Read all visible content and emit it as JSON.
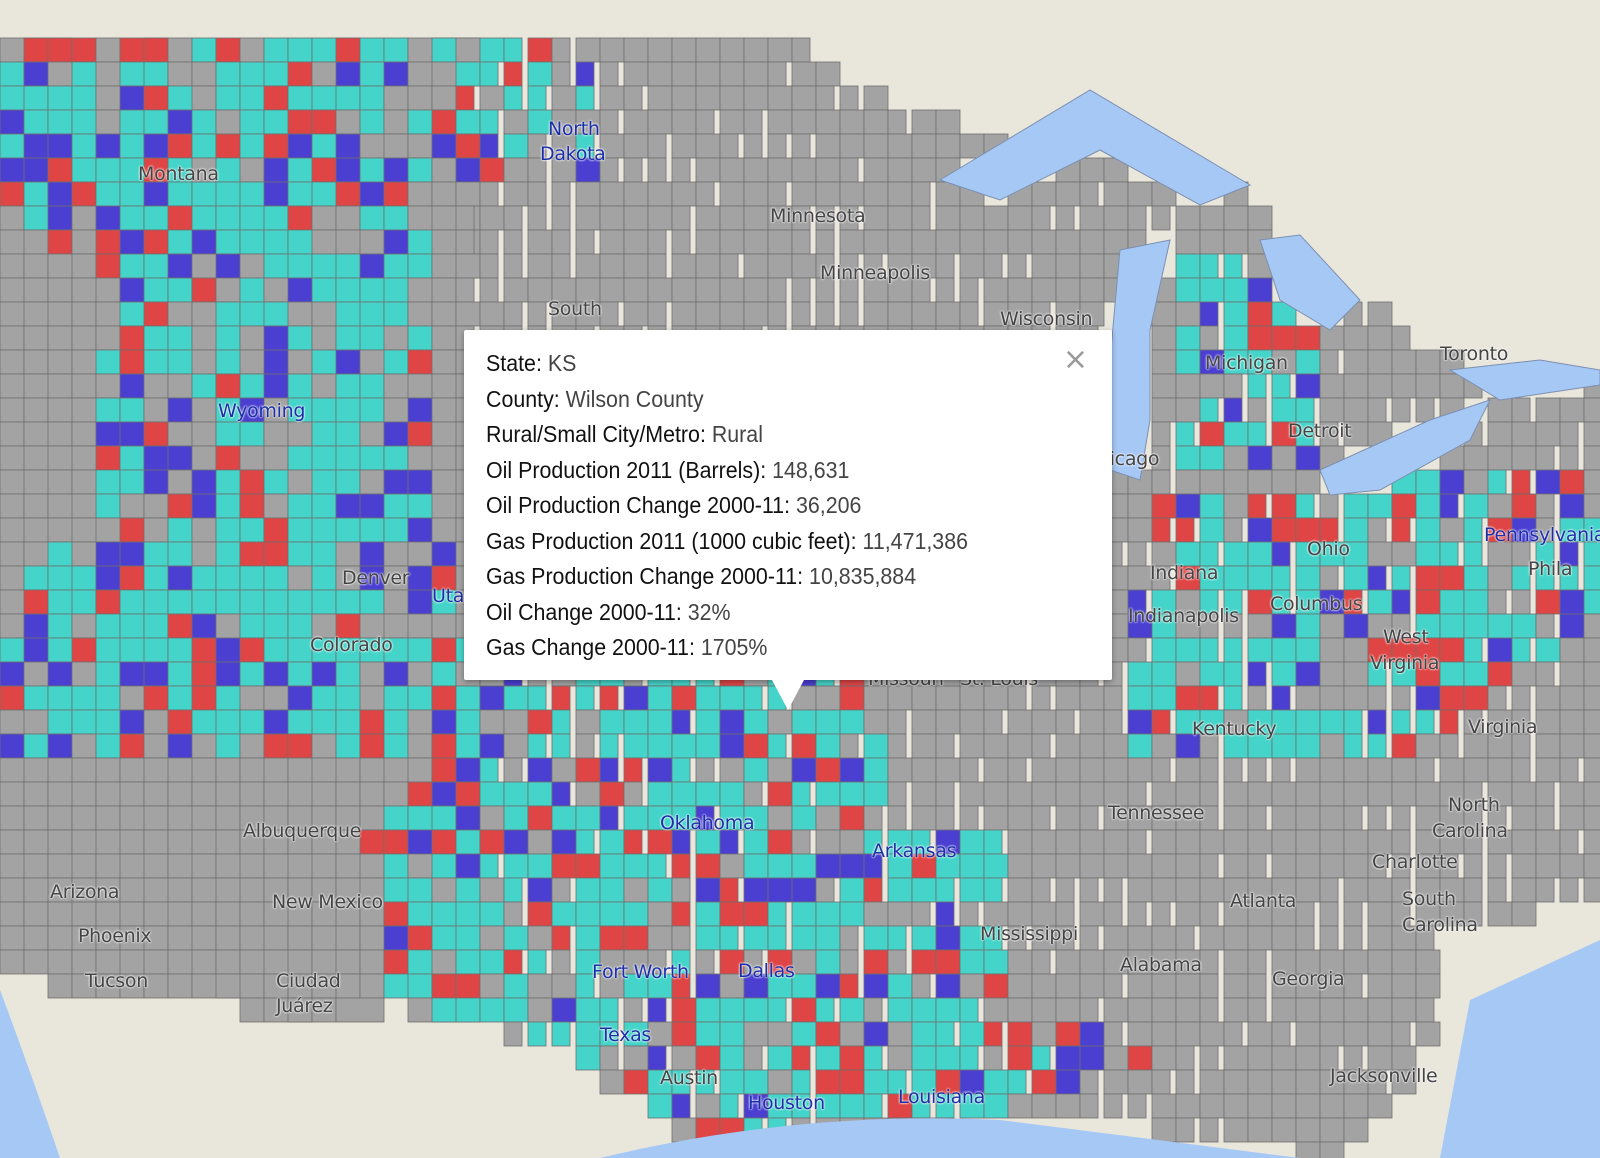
{
  "map": {
    "colors": {
      "oil_gas_increase": "#45d4c9",
      "oil_increase": "#e04545",
      "gas_increase": "#4a3fd1",
      "no_change": "#a3a3a3",
      "county_border": "#6e6e6e",
      "water": "#a6c8f5",
      "land": "#e9e6dc"
    },
    "labels": [
      {
        "text": "North",
        "cls": "blue"
      },
      {
        "text": "Dakota",
        "cls": "blue"
      },
      {
        "text": "Montana",
        "cls": "state"
      },
      {
        "text": "Minnesota",
        "cls": "state"
      },
      {
        "text": "Minneapolis",
        "cls": "state"
      },
      {
        "text": "South",
        "cls": "state"
      },
      {
        "text": "Wisconsin",
        "cls": "state"
      },
      {
        "text": "Wyoming",
        "cls": "blue"
      },
      {
        "text": "Michigan",
        "cls": "state"
      },
      {
        "text": "Toronto",
        "cls": "state"
      },
      {
        "text": "Detroit",
        "cls": "state"
      },
      {
        "text": "Chicago",
        "cls": "state"
      },
      {
        "text": "Denver",
        "cls": "state"
      },
      {
        "text": "Utah",
        "cls": "blue"
      },
      {
        "text": "Colorado",
        "cls": "state"
      },
      {
        "text": "Indiana",
        "cls": "state"
      },
      {
        "text": "Indianapolis",
        "cls": "state"
      },
      {
        "text": "Ohio",
        "cls": "state"
      },
      {
        "text": "Columbus",
        "cls": "state"
      },
      {
        "text": "West",
        "cls": "state"
      },
      {
        "text": "Virginia",
        "cls": "state"
      },
      {
        "text": "Missouri",
        "cls": "state"
      },
      {
        "text": "St. Louis",
        "cls": "state"
      },
      {
        "text": "Kentucky",
        "cls": "state"
      },
      {
        "text": "Virginia",
        "cls": "state"
      },
      {
        "text": "Albuquerque",
        "cls": "state"
      },
      {
        "text": "Oklahoma",
        "cls": "blue"
      },
      {
        "text": "Arkansas",
        "cls": "blue"
      },
      {
        "text": "Tennessee",
        "cls": "state"
      },
      {
        "text": "North",
        "cls": "state"
      },
      {
        "text": "Carolina",
        "cls": "state"
      },
      {
        "text": "Charlotte",
        "cls": "state"
      },
      {
        "text": "Arizona",
        "cls": "state"
      },
      {
        "text": "New Mexico",
        "cls": "state"
      },
      {
        "text": "Phoenix",
        "cls": "state"
      },
      {
        "text": "Atlanta",
        "cls": "state"
      },
      {
        "text": "South",
        "cls": "state"
      },
      {
        "text": "Carolina",
        "cls": "state"
      },
      {
        "text": "Mississippi",
        "cls": "state"
      },
      {
        "text": "Tucson",
        "cls": "state"
      },
      {
        "text": "Ciudad",
        "cls": "state"
      },
      {
        "text": "Juárez",
        "cls": "state"
      },
      {
        "text": "Fort Worth",
        "cls": "blue"
      },
      {
        "text": "Dallas",
        "cls": "blue"
      },
      {
        "text": "Alabama",
        "cls": "state"
      },
      {
        "text": "Georgia",
        "cls": "state"
      },
      {
        "text": "Texas",
        "cls": "blue"
      },
      {
        "text": "Austin",
        "cls": "state"
      },
      {
        "text": "Houston",
        "cls": "blue"
      },
      {
        "text": "Louisiana",
        "cls": "blue"
      },
      {
        "text": "Jacksonville",
        "cls": "state"
      },
      {
        "text": "Pennsylvania",
        "cls": "blue"
      },
      {
        "text": "Phila",
        "cls": "state"
      }
    ]
  },
  "popup": {
    "rows": [
      {
        "label": "State: ",
        "value": "KS"
      },
      {
        "label": "County: ",
        "value": "Wilson County"
      },
      {
        "label": "Rural/Small City/Metro: ",
        "value": "Rural"
      },
      {
        "label": "Oil Production 2011 (Barrels): ",
        "value": "148,631"
      },
      {
        "label": "Oil Production Change 2000-11: ",
        "value": "36,206"
      },
      {
        "label": "Gas Production 2011 (1000 cubic feet): ",
        "value": "11,471,386"
      },
      {
        "label": "Gas Production Change 2000-11: ",
        "value": "10,835,884"
      },
      {
        "label": "Oil Change 2000-11: ",
        "value": "32%"
      },
      {
        "label": "Gas Change 2000-11: ",
        "value": "1705%"
      }
    ],
    "close_icon": "×"
  }
}
